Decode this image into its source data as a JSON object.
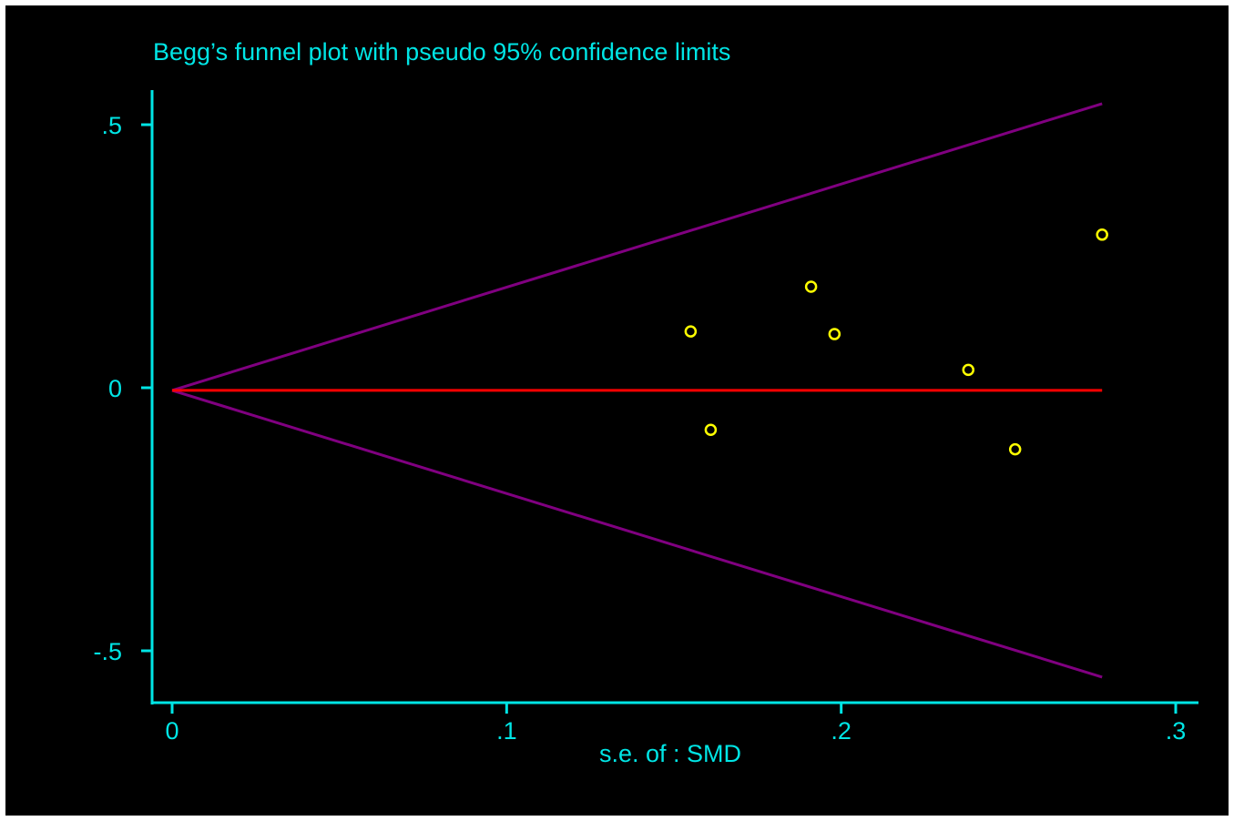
{
  "chart_data": {
    "type": "scatter",
    "title": "Begg’s funnel plot with pseudo 95% confidence limits",
    "xlabel": "s.e. of : SMD",
    "ylabel": "",
    "xlim": [
      0,
      0.3
    ],
    "ylim": [
      -0.55,
      0.55
    ],
    "x_ticks": [
      0,
      0.1,
      0.2,
      0.3
    ],
    "x_tick_labels": [
      "0",
      ".1",
      ".2",
      ".3"
    ],
    "y_ticks": [
      0.5,
      0,
      -0.5
    ],
    "y_tick_labels": [
      ".5",
      "0",
      "-.5"
    ],
    "grid": false,
    "legend": "none",
    "points": {
      "x": [
        0.155,
        0.161,
        0.191,
        0.198,
        0.238,
        0.252,
        0.278
      ],
      "y": [
        0.107,
        -0.08,
        0.192,
        0.102,
        0.034,
        -0.117,
        0.291
      ]
    },
    "pooled_estimate": -0.005,
    "pooled_line_x": [
      0,
      0.278
    ],
    "confidence_limit_lines": {
      "x": [
        0,
        0.278
      ],
      "upper": [
        -0.005,
        0.54
      ],
      "lower": [
        -0.005,
        -0.55
      ]
    },
    "colors": {
      "background": "#000000",
      "axes": "#00e5e5",
      "text": "#00e5e5",
      "points": "#ffff00",
      "pooled_line": "#ff0000",
      "limit_lines": "#800080"
    }
  }
}
